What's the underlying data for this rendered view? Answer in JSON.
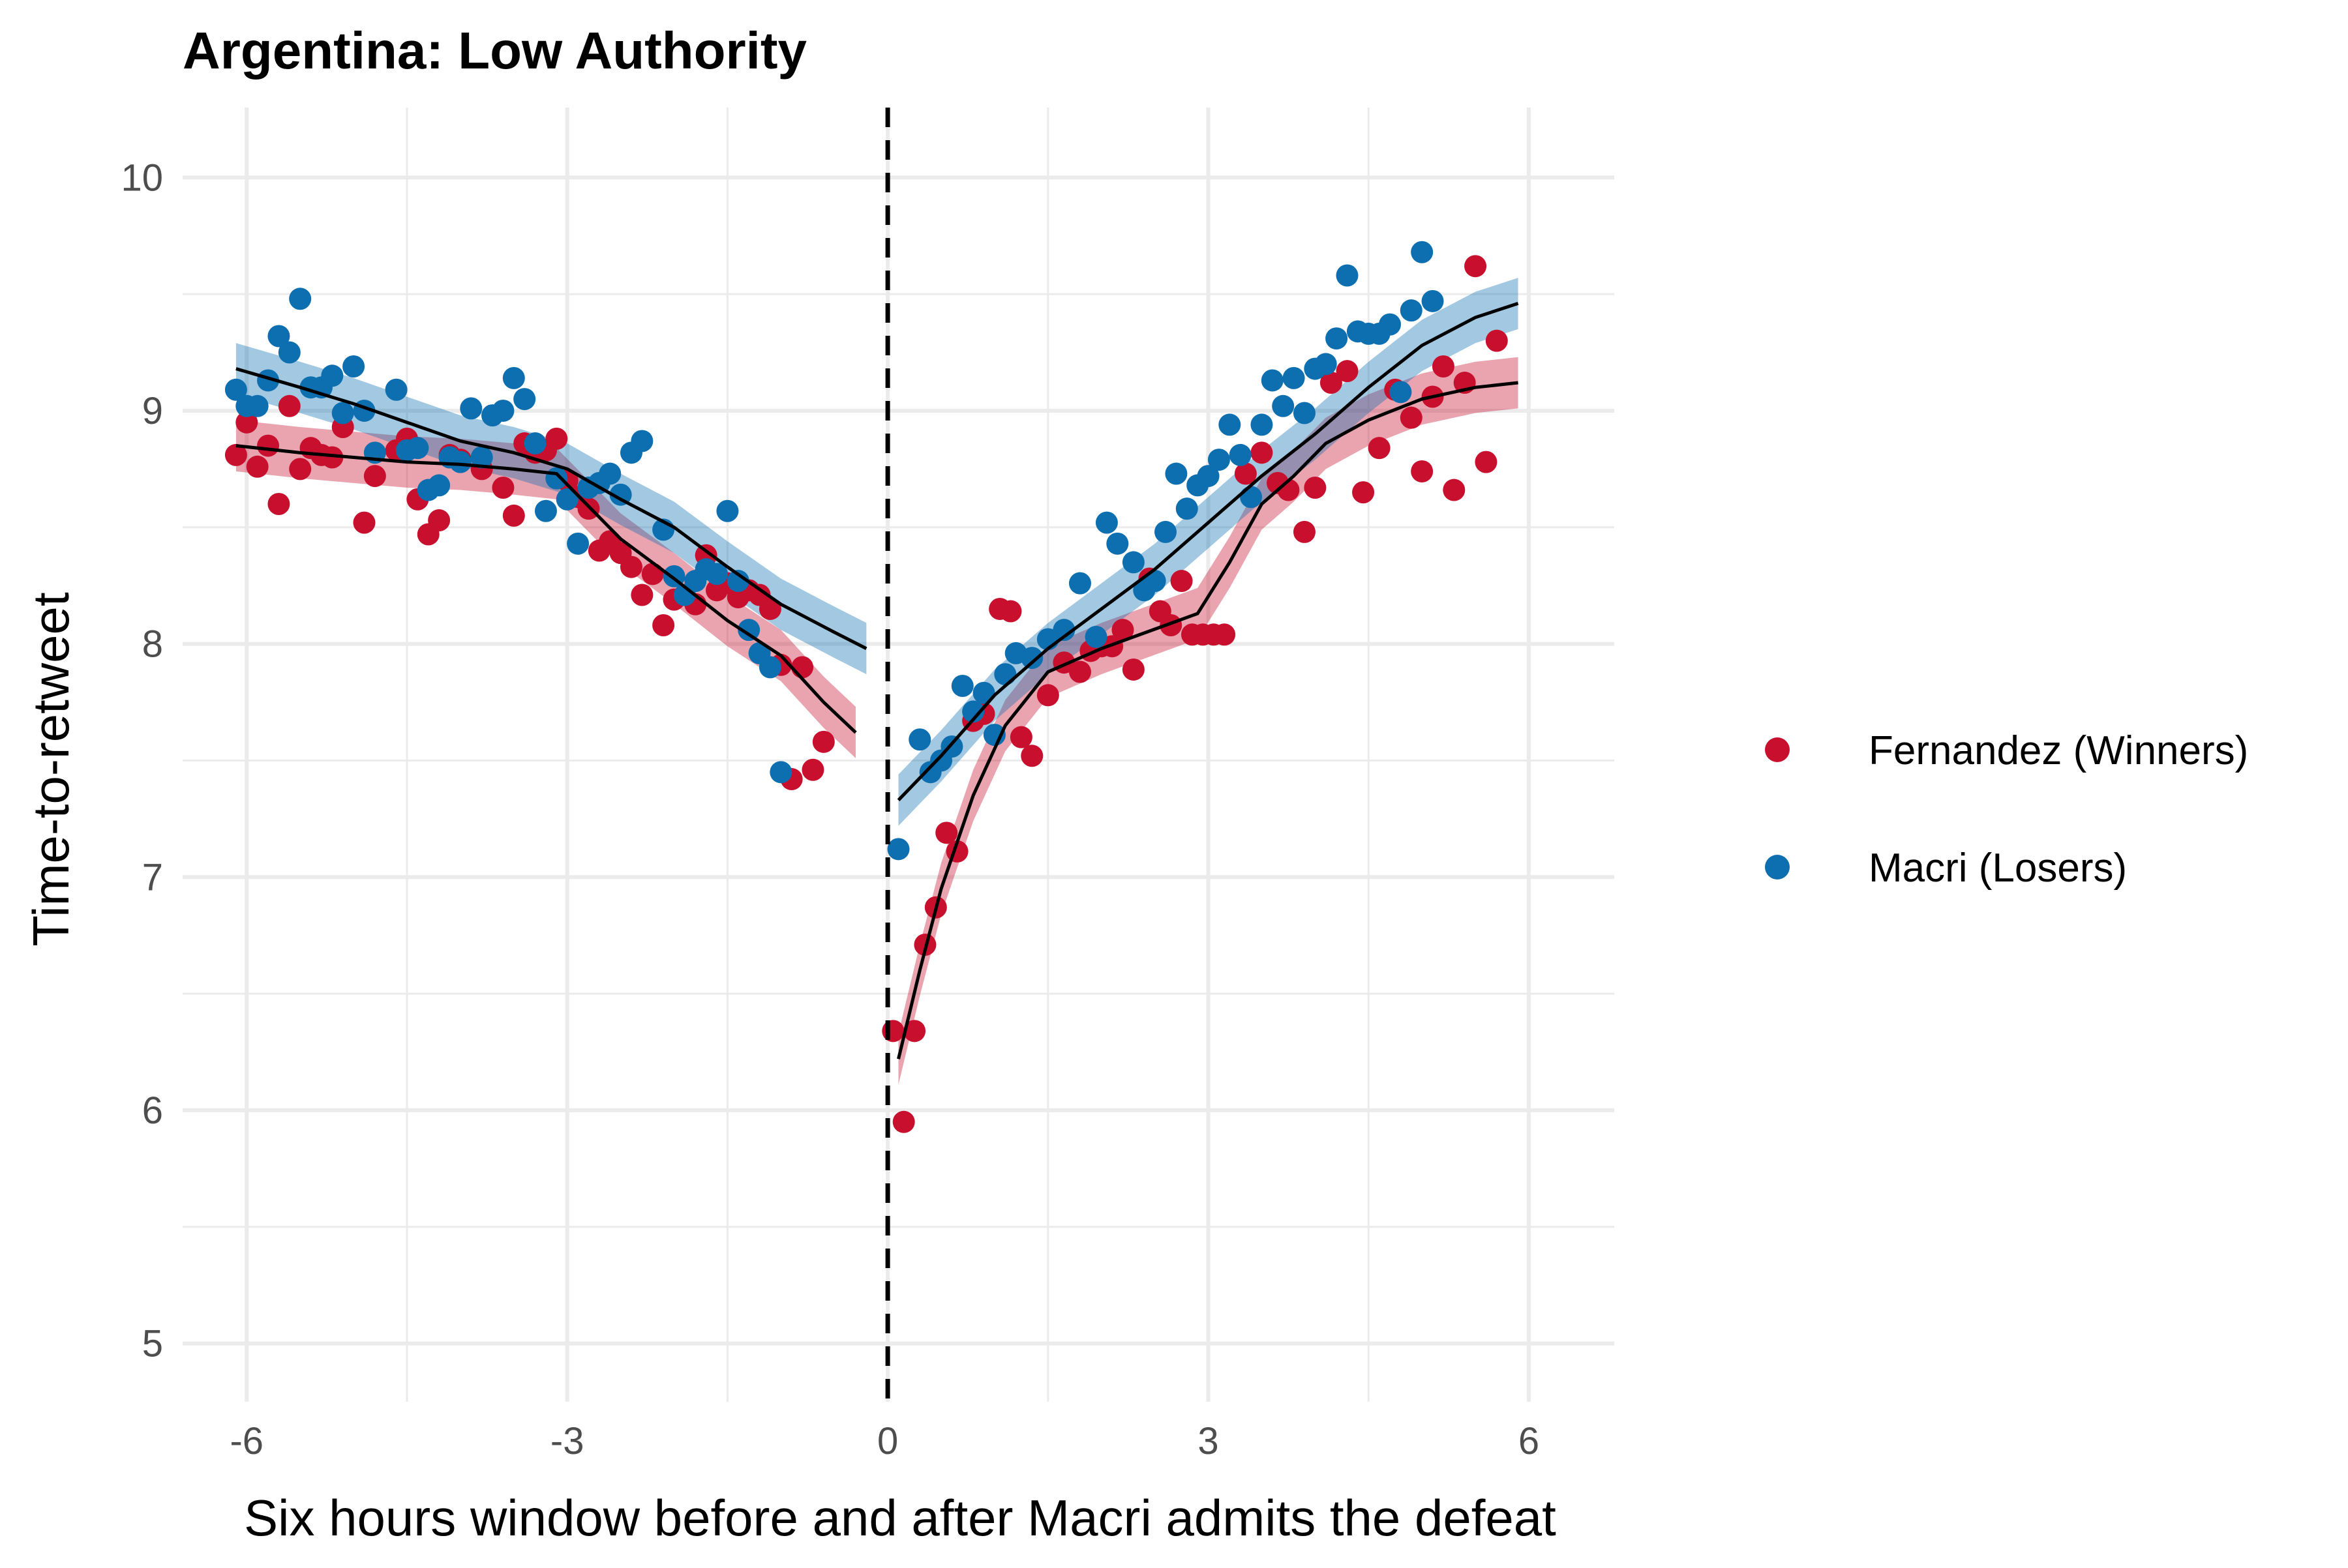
{
  "chart_data": {
    "type": "scatter",
    "title": "Argentina: Low Authority",
    "xlabel": "Six hours window before and after Macri admits the defeat",
    "ylabel": "Time-to-retweet",
    "xlim": [
      -6.6,
      6.8
    ],
    "ylim": [
      4.75,
      10.3
    ],
    "x_ticks": [
      -6,
      -3,
      0,
      3,
      6
    ],
    "x_tick_labels": [
      "-6",
      "-3",
      "0",
      "3",
      "6"
    ],
    "y_ticks": [
      5,
      6,
      7,
      8,
      9,
      10
    ],
    "y_tick_labels": [
      "5",
      "6",
      "7",
      "8",
      "9",
      "10"
    ],
    "grid": true,
    "legend_position": "right",
    "vline": {
      "x": 0,
      "style": "dashed"
    },
    "series": [
      {
        "name": "Fernandez (Winners)",
        "color": "#C8102E",
        "points": [
          [
            -6.1,
            8.81
          ],
          [
            -6.0,
            8.95
          ],
          [
            -5.9,
            8.76
          ],
          [
            -5.8,
            8.85
          ],
          [
            -5.7,
            8.6
          ],
          [
            -5.6,
            9.02
          ],
          [
            -5.5,
            8.75
          ],
          [
            -5.4,
            8.84
          ],
          [
            -5.3,
            8.81
          ],
          [
            -5.2,
            8.8
          ],
          [
            -5.1,
            8.93
          ],
          [
            -4.9,
            8.52
          ],
          [
            -4.8,
            8.72
          ],
          [
            -4.6,
            8.83
          ],
          [
            -4.5,
            8.88
          ],
          [
            -4.4,
            8.62
          ],
          [
            -4.3,
            8.47
          ],
          [
            -4.2,
            8.53
          ],
          [
            -4.1,
            8.81
          ],
          [
            -4.0,
            8.79
          ],
          [
            -3.8,
            8.75
          ],
          [
            -3.6,
            8.67
          ],
          [
            -3.5,
            8.55
          ],
          [
            -3.4,
            8.86
          ],
          [
            -3.3,
            8.82
          ],
          [
            -3.2,
            8.83
          ],
          [
            -3.1,
            8.88
          ],
          [
            -3.0,
            8.7
          ],
          [
            -2.9,
            8.63
          ],
          [
            -2.8,
            8.58
          ],
          [
            -2.7,
            8.4
          ],
          [
            -2.6,
            8.44
          ],
          [
            -2.5,
            8.39
          ],
          [
            -2.4,
            8.33
          ],
          [
            -2.3,
            8.21
          ],
          [
            -2.2,
            8.3
          ],
          [
            -2.1,
            8.08
          ],
          [
            -2.0,
            8.19
          ],
          [
            -1.9,
            8.21
          ],
          [
            -1.8,
            8.17
          ],
          [
            -1.7,
            8.38
          ],
          [
            -1.6,
            8.23
          ],
          [
            -1.5,
            8.26
          ],
          [
            -1.4,
            8.2
          ],
          [
            -1.3,
            8.23
          ],
          [
            -1.2,
            8.21
          ],
          [
            -1.1,
            8.15
          ],
          [
            -1.0,
            7.91
          ],
          [
            -0.9,
            7.42
          ],
          [
            -0.8,
            7.9
          ],
          [
            -0.7,
            7.46
          ],
          [
            -0.6,
            7.58
          ],
          [
            0.05,
            6.34
          ],
          [
            0.15,
            5.95
          ],
          [
            0.25,
            6.34
          ],
          [
            0.35,
            6.71
          ],
          [
            0.45,
            6.87
          ],
          [
            0.55,
            7.19
          ],
          [
            0.65,
            7.11
          ],
          [
            0.8,
            7.67
          ],
          [
            0.9,
            7.7
          ],
          [
            1.05,
            8.15
          ],
          [
            1.15,
            8.14
          ],
          [
            1.25,
            7.6
          ],
          [
            1.35,
            7.52
          ],
          [
            1.5,
            7.78
          ],
          [
            1.65,
            7.92
          ],
          [
            1.8,
            7.88
          ],
          [
            1.9,
            7.97
          ],
          [
            2.0,
            7.99
          ],
          [
            2.1,
            7.99
          ],
          [
            2.2,
            8.06
          ],
          [
            2.3,
            7.89
          ],
          [
            2.45,
            8.28
          ],
          [
            2.55,
            8.14
          ],
          [
            2.65,
            8.08
          ],
          [
            2.75,
            8.27
          ],
          [
            2.85,
            8.04
          ],
          [
            2.95,
            8.04
          ],
          [
            3.05,
            8.04
          ],
          [
            3.15,
            8.04
          ],
          [
            3.35,
            8.73
          ],
          [
            3.5,
            8.82
          ],
          [
            3.65,
            8.69
          ],
          [
            3.75,
            8.66
          ],
          [
            3.9,
            8.48
          ],
          [
            4.0,
            8.67
          ],
          [
            4.15,
            9.12
          ],
          [
            4.3,
            9.17
          ],
          [
            4.45,
            8.65
          ],
          [
            4.6,
            8.84
          ],
          [
            4.75,
            9.09
          ],
          [
            4.9,
            8.97
          ],
          [
            5.0,
            8.74
          ],
          [
            5.1,
            9.06
          ],
          [
            5.2,
            9.19
          ],
          [
            5.3,
            8.66
          ],
          [
            5.4,
            9.12
          ],
          [
            5.5,
            9.62
          ],
          [
            5.6,
            8.78
          ],
          [
            5.7,
            9.3
          ]
        ],
        "smooth": [
          [
            -6.1,
            8.85
          ],
          [
            -5.5,
            8.82
          ],
          [
            -5.0,
            8.8
          ],
          [
            -4.5,
            8.78
          ],
          [
            -4.0,
            8.77
          ],
          [
            -3.5,
            8.75
          ],
          [
            -3.1,
            8.73
          ],
          [
            -2.5,
            8.45
          ],
          [
            -2.0,
            8.28
          ],
          [
            -1.5,
            8.1
          ],
          [
            -1.0,
            7.95
          ],
          [
            -0.6,
            7.75
          ],
          [
            -0.3,
            7.62
          ],
          [
            0.1,
            6.22
          ],
          [
            0.3,
            6.6
          ],
          [
            0.5,
            6.95
          ],
          [
            0.8,
            7.35
          ],
          [
            1.1,
            7.65
          ],
          [
            1.5,
            7.88
          ],
          [
            2.0,
            7.98
          ],
          [
            2.3,
            8.03
          ],
          [
            2.6,
            8.08
          ],
          [
            2.9,
            8.13
          ],
          [
            3.2,
            8.35
          ],
          [
            3.5,
            8.6
          ],
          [
            3.8,
            8.72
          ],
          [
            4.1,
            8.86
          ],
          [
            4.5,
            8.96
          ],
          [
            5.0,
            9.05
          ],
          [
            5.5,
            9.1
          ],
          [
            5.9,
            9.12
          ]
        ]
      },
      {
        "name": "Macri (Losers)",
        "color": "#0D6EB0",
        "points": [
          [
            -6.1,
            9.09
          ],
          [
            -6.0,
            9.02
          ],
          [
            -5.9,
            9.02
          ],
          [
            -5.8,
            9.13
          ],
          [
            -5.7,
            9.32
          ],
          [
            -5.6,
            9.25
          ],
          [
            -5.5,
            9.48
          ],
          [
            -5.4,
            9.1
          ],
          [
            -5.3,
            9.1
          ],
          [
            -5.2,
            9.15
          ],
          [
            -5.1,
            8.99
          ],
          [
            -5.0,
            9.19
          ],
          [
            -4.9,
            9.0
          ],
          [
            -4.8,
            8.82
          ],
          [
            -4.6,
            9.09
          ],
          [
            -4.5,
            8.83
          ],
          [
            -4.4,
            8.84
          ],
          [
            -4.3,
            8.66
          ],
          [
            -4.2,
            8.68
          ],
          [
            -4.1,
            8.8
          ],
          [
            -4.0,
            8.78
          ],
          [
            -3.9,
            9.01
          ],
          [
            -3.8,
            8.8
          ],
          [
            -3.7,
            8.98
          ],
          [
            -3.6,
            9.0
          ],
          [
            -3.5,
            9.14
          ],
          [
            -3.4,
            9.05
          ],
          [
            -3.3,
            8.86
          ],
          [
            -3.2,
            8.57
          ],
          [
            -3.1,
            8.71
          ],
          [
            -3.0,
            8.62
          ],
          [
            -2.9,
            8.43
          ],
          [
            -2.8,
            8.67
          ],
          [
            -2.7,
            8.69
          ],
          [
            -2.6,
            8.73
          ],
          [
            -2.5,
            8.64
          ],
          [
            -2.4,
            8.82
          ],
          [
            -2.3,
            8.87
          ],
          [
            -2.1,
            8.49
          ],
          [
            -2.0,
            8.29
          ],
          [
            -1.9,
            8.21
          ],
          [
            -1.8,
            8.27
          ],
          [
            -1.7,
            8.32
          ],
          [
            -1.6,
            8.3
          ],
          [
            -1.5,
            8.57
          ],
          [
            -1.4,
            8.27
          ],
          [
            -1.3,
            8.06
          ],
          [
            -1.2,
            7.96
          ],
          [
            -1.1,
            7.9
          ],
          [
            -1.0,
            7.45
          ],
          [
            0.1,
            7.12
          ],
          [
            0.3,
            7.59
          ],
          [
            0.4,
            7.45
          ],
          [
            0.5,
            7.5
          ],
          [
            0.6,
            7.56
          ],
          [
            0.7,
            7.82
          ],
          [
            0.8,
            7.71
          ],
          [
            0.9,
            7.79
          ],
          [
            1.0,
            7.61
          ],
          [
            1.1,
            7.87
          ],
          [
            1.2,
            7.96
          ],
          [
            1.35,
            7.94
          ],
          [
            1.5,
            8.02
          ],
          [
            1.65,
            8.06
          ],
          [
            1.8,
            8.26
          ],
          [
            1.95,
            8.03
          ],
          [
            2.05,
            8.52
          ],
          [
            2.15,
            8.43
          ],
          [
            2.3,
            8.35
          ],
          [
            2.4,
            8.23
          ],
          [
            2.5,
            8.27
          ],
          [
            2.6,
            8.48
          ],
          [
            2.7,
            8.73
          ],
          [
            2.8,
            8.58
          ],
          [
            2.9,
            8.68
          ],
          [
            3.0,
            8.72
          ],
          [
            3.1,
            8.79
          ],
          [
            3.2,
            8.94
          ],
          [
            3.3,
            8.81
          ],
          [
            3.4,
            8.63
          ],
          [
            3.5,
            8.94
          ],
          [
            3.6,
            9.13
          ],
          [
            3.7,
            9.02
          ],
          [
            3.8,
            9.14
          ],
          [
            3.9,
            8.99
          ],
          [
            4.0,
            9.18
          ],
          [
            4.1,
            9.2
          ],
          [
            4.2,
            9.31
          ],
          [
            4.3,
            9.58
          ],
          [
            4.4,
            9.34
          ],
          [
            4.5,
            9.33
          ],
          [
            4.6,
            9.33
          ],
          [
            4.7,
            9.37
          ],
          [
            4.8,
            9.08
          ],
          [
            4.9,
            9.43
          ],
          [
            5.0,
            9.68
          ],
          [
            5.1,
            9.47
          ]
        ],
        "smooth": [
          [
            -6.1,
            9.18
          ],
          [
            -5.5,
            9.1
          ],
          [
            -5.0,
            9.03
          ],
          [
            -4.5,
            8.95
          ],
          [
            -4.0,
            8.87
          ],
          [
            -3.5,
            8.82
          ],
          [
            -3.0,
            8.75
          ],
          [
            -2.5,
            8.62
          ],
          [
            -2.0,
            8.5
          ],
          [
            -1.5,
            8.33
          ],
          [
            -1.0,
            8.17
          ],
          [
            -0.5,
            8.05
          ],
          [
            -0.2,
            7.98
          ],
          [
            0.1,
            7.33
          ],
          [
            0.5,
            7.52
          ],
          [
            1.0,
            7.78
          ],
          [
            1.5,
            7.98
          ],
          [
            2.0,
            8.15
          ],
          [
            2.5,
            8.32
          ],
          [
            3.0,
            8.52
          ],
          [
            3.5,
            8.72
          ],
          [
            4.0,
            8.9
          ],
          [
            4.5,
            9.1
          ],
          [
            5.0,
            9.28
          ],
          [
            5.5,
            9.4
          ],
          [
            5.9,
            9.46
          ]
        ]
      }
    ]
  }
}
